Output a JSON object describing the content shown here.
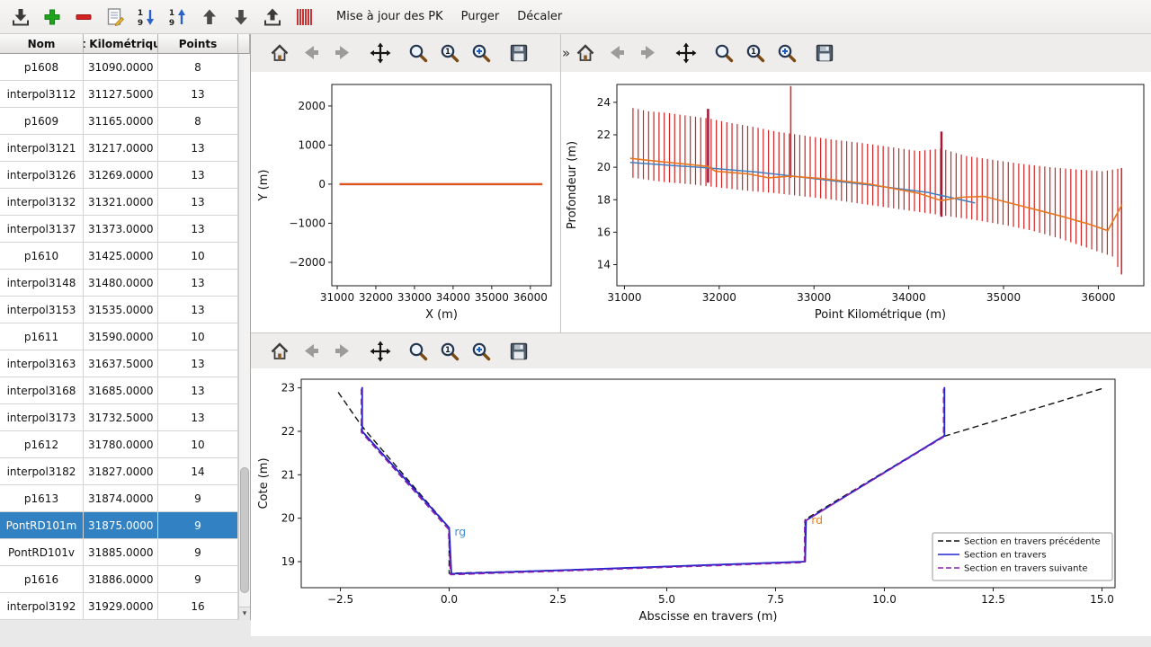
{
  "toolbar": {
    "icons": [
      "import-icon",
      "add-icon",
      "remove-icon",
      "edit-icon",
      "sort-desc-icon",
      "sort-asc-icon",
      "move-up-icon",
      "move-down-icon",
      "export-icon",
      "pk-stripes-icon"
    ],
    "buttons": [
      {
        "label": "Mise à jour des PK"
      },
      {
        "label": "Purger"
      },
      {
        "label": "Décaler"
      }
    ]
  },
  "table": {
    "headers": [
      "Nom",
      "t Kilométriqu",
      "Points"
    ],
    "selected": "PontRD101m",
    "rows": [
      {
        "name": "p1608",
        "pk": "31090.0000",
        "points": "8"
      },
      {
        "name": "interpol3112",
        "pk": "31127.5000",
        "points": "13"
      },
      {
        "name": "p1609",
        "pk": "31165.0000",
        "points": "8"
      },
      {
        "name": "interpol3121",
        "pk": "31217.0000",
        "points": "13"
      },
      {
        "name": "interpol3126",
        "pk": "31269.0000",
        "points": "13"
      },
      {
        "name": "interpol3132",
        "pk": "31321.0000",
        "points": "13"
      },
      {
        "name": "interpol3137",
        "pk": "31373.0000",
        "points": "13"
      },
      {
        "name": "p1610",
        "pk": "31425.0000",
        "points": "10"
      },
      {
        "name": "interpol3148",
        "pk": "31480.0000",
        "points": "13"
      },
      {
        "name": "interpol3153",
        "pk": "31535.0000",
        "points": "13"
      },
      {
        "name": "p1611",
        "pk": "31590.0000",
        "points": "10"
      },
      {
        "name": "interpol3163",
        "pk": "31637.5000",
        "points": "13"
      },
      {
        "name": "interpol3168",
        "pk": "31685.0000",
        "points": "13"
      },
      {
        "name": "interpol3173",
        "pk": "31732.5000",
        "points": "13"
      },
      {
        "name": "p1612",
        "pk": "31780.0000",
        "points": "10"
      },
      {
        "name": "interpol3182",
        "pk": "31827.0000",
        "points": "14"
      },
      {
        "name": "p1613",
        "pk": "31874.0000",
        "points": "9"
      },
      {
        "name": "PontRD101m",
        "pk": "31875.0000",
        "points": "9"
      },
      {
        "name": "PontRD101v",
        "pk": "31885.0000",
        "points": "9"
      },
      {
        "name": "p1616",
        "pk": "31886.0000",
        "points": "9"
      },
      {
        "name": "interpol3192",
        "pk": "31929.0000",
        "points": "16"
      }
    ]
  },
  "plot_toolbars": {
    "icons": [
      "home-icon",
      "back-icon",
      "forward-icon",
      "pan-icon",
      "zoom-icon",
      "zoom-one-icon",
      "zoom-plus-icon",
      "save-icon"
    ],
    "overflow": "»"
  },
  "chart_data": [
    {
      "name": "plan-view",
      "type": "line",
      "title": "",
      "xlabel": "X (m)",
      "ylabel": "Y (m)",
      "xlim": [
        30860,
        36540
      ],
      "ylim": [
        -2600,
        2550
      ],
      "xticks": [
        31000,
        32000,
        33000,
        34000,
        35000,
        36000
      ],
      "xtick_labels": [
        "31000",
        "32000",
        "33000",
        "34000",
        "35000",
        "36000"
      ],
      "yticks": [
        -2000,
        -1000,
        0,
        1000,
        2000
      ],
      "ytick_labels": [
        "−2000",
        "−1000",
        "0",
        "1000",
        "2000"
      ],
      "series": [
        {
          "name": "axe-rouge",
          "color": "#cc2222",
          "width": 2.4,
          "points": [
            [
              31060,
              0
            ],
            [
              36310,
              0
            ]
          ]
        },
        {
          "name": "axe-orange",
          "color": "#e8761e",
          "width": 1.3,
          "points": [
            [
              31060,
              0
            ],
            [
              36310,
              0
            ]
          ]
        }
      ]
    },
    {
      "name": "profil-en-long",
      "type": "line",
      "title": "",
      "xlabel": "Point Kilométrique (m)",
      "ylabel": "Profondeur (m)",
      "xlim": [
        30920,
        36480
      ],
      "ylim": [
        12.7,
        25.1
      ],
      "xticks": [
        31000,
        32000,
        33000,
        34000,
        35000,
        36000
      ],
      "xtick_labels": [
        "31000",
        "32000",
        "33000",
        "34000",
        "35000",
        "36000"
      ],
      "yticks": [
        14,
        16,
        18,
        20,
        22,
        24
      ],
      "ytick_labels": [
        "14",
        "16",
        "18",
        "20",
        "22",
        "24"
      ],
      "bars": {
        "x0": 31090,
        "x1": 36245,
        "step": 55,
        "color": "#cf2222",
        "top": [
          [
            31090,
            23.65
          ],
          [
            31250,
            23.45
          ],
          [
            31450,
            23.35
          ],
          [
            31700,
            23.15
          ],
          [
            31900,
            23.0
          ],
          [
            32100,
            22.75
          ],
          [
            32350,
            22.5
          ],
          [
            32600,
            22.2
          ],
          [
            32900,
            21.95
          ],
          [
            33200,
            21.7
          ],
          [
            33500,
            21.5
          ],
          [
            33800,
            21.25
          ],
          [
            34100,
            21.0
          ],
          [
            34345,
            21.15
          ],
          [
            34600,
            20.7
          ],
          [
            34900,
            20.45
          ],
          [
            35200,
            20.2
          ],
          [
            35500,
            20.0
          ],
          [
            35800,
            19.85
          ],
          [
            36050,
            19.75
          ],
          [
            36245,
            19.95
          ]
        ],
        "bottom": [
          [
            31090,
            19.35
          ],
          [
            31400,
            19.1
          ],
          [
            31700,
            18.95
          ],
          [
            32000,
            18.75
          ],
          [
            32300,
            18.55
          ],
          [
            32600,
            18.4
          ],
          [
            32900,
            18.2
          ],
          [
            33200,
            18.0
          ],
          [
            33500,
            17.75
          ],
          [
            33800,
            17.5
          ],
          [
            34100,
            17.25
          ],
          [
            34400,
            17.0
          ],
          [
            34700,
            16.75
          ],
          [
            35000,
            16.45
          ],
          [
            35300,
            16.1
          ],
          [
            35600,
            15.6
          ],
          [
            35850,
            15.1
          ],
          [
            36050,
            14.7
          ],
          [
            36150,
            14.5
          ],
          [
            36245,
            13.4
          ]
        ]
      },
      "special_bars": [
        {
          "x": 31882,
          "y0": 19.05,
          "y1": 23.6,
          "w": 2.5,
          "color": "#a81535"
        },
        {
          "x": 32755,
          "y0": 19.35,
          "y1": 25.0,
          "w": 1.6,
          "color": "#d42a2a"
        },
        {
          "x": 34345,
          "y0": 16.95,
          "y1": 22.2,
          "w": 2.5,
          "color": "#a81535"
        },
        {
          "x": 36245,
          "y0": 13.4,
          "y1": 19.95,
          "w": 1.6,
          "color": "#d42a2a"
        }
      ],
      "series": [
        {
          "name": "fond-bleu",
          "color": "#3f7fbf",
          "width": 1.5,
          "points": [
            [
              31060,
              20.3
            ],
            [
              31400,
              20.15
            ],
            [
              31900,
              19.95
            ],
            [
              32400,
              19.7
            ],
            [
              33000,
              19.3
            ],
            [
              33600,
              18.9
            ],
            [
              34200,
              18.45
            ],
            [
              34700,
              17.8
            ]
          ]
        },
        {
          "name": "fond-orange",
          "color": "#e8761e",
          "width": 1.6,
          "points": [
            [
              31060,
              20.55
            ],
            [
              31300,
              20.4
            ],
            [
              31880,
              20.05
            ],
            [
              31960,
              19.75
            ],
            [
              32300,
              19.6
            ],
            [
              32520,
              19.35
            ],
            [
              32750,
              19.45
            ],
            [
              33100,
              19.3
            ],
            [
              33600,
              18.95
            ],
            [
              34100,
              18.4
            ],
            [
              34345,
              17.95
            ],
            [
              34550,
              18.15
            ],
            [
              34800,
              18.2
            ],
            [
              35200,
              17.6
            ],
            [
              35600,
              17.0
            ],
            [
              35900,
              16.5
            ],
            [
              36100,
              16.1
            ],
            [
              36250,
              17.7
            ]
          ]
        }
      ]
    },
    {
      "name": "section-en-travers",
      "type": "line",
      "title": "",
      "xlabel": "Abscisse en travers (m)",
      "ylabel": "Cote (m)",
      "xlim": [
        -3.4,
        15.3
      ],
      "ylim": [
        18.4,
        23.2
      ],
      "xticks": [
        -2.5,
        0,
        2.5,
        5,
        7.5,
        10,
        12.5,
        15
      ],
      "xtick_labels": [
        "−2.5",
        "0.0",
        "2.5",
        "5.0",
        "7.5",
        "10.0",
        "12.5",
        "15.0"
      ],
      "yticks": [
        19,
        20,
        21,
        22,
        23
      ],
      "ytick_labels": [
        "19",
        "20",
        "21",
        "22",
        "23"
      ],
      "show_legend": true,
      "series": [
        {
          "name": "Section en travers précédente",
          "color": "#111111",
          "width": 1.4,
          "dash": true,
          "points": [
            [
              -2.55,
              22.9
            ],
            [
              -2.1,
              22.25
            ],
            [
              -1.95,
              22.05
            ],
            [
              0,
              19.78
            ],
            [
              0,
              18.73
            ],
            [
              2.5,
              18.8
            ],
            [
              8.18,
              19.0
            ],
            [
              8.18,
              19.97
            ],
            [
              11.35,
              21.88
            ],
            [
              15.05,
              23.0
            ]
          ]
        },
        {
          "name": "Section en travers",
          "color": "#2323cd",
          "width": 1.8,
          "dash": false,
          "points": [
            [
              -2.0,
              23.02
            ],
            [
              -2.0,
              22.0
            ],
            [
              0,
              19.78
            ],
            [
              0.05,
              18.72
            ],
            [
              2.5,
              18.8
            ],
            [
              8.18,
              19.0
            ],
            [
              8.2,
              19.95
            ],
            [
              11.38,
              21.9
            ],
            [
              11.38,
              23.02
            ]
          ]
        },
        {
          "name": "Section en travers suivante",
          "color": "#8a1fae",
          "width": 1.5,
          "dash": true,
          "points": [
            [
              -2.02,
              22.98
            ],
            [
              -2.02,
              21.98
            ],
            [
              -0.02,
              19.75
            ],
            [
              0.03,
              18.7
            ],
            [
              2.5,
              18.78
            ],
            [
              8.16,
              18.98
            ],
            [
              8.17,
              19.93
            ],
            [
              11.36,
              21.87
            ],
            [
              11.36,
              22.98
            ]
          ]
        }
      ],
      "annotations": [
        {
          "text": "rg",
          "x": 0.12,
          "y": 19.6,
          "color": "#3f8fd2"
        },
        {
          "text": "rd",
          "x": 8.32,
          "y": 19.87,
          "color": "#e8821e"
        }
      ]
    }
  ]
}
